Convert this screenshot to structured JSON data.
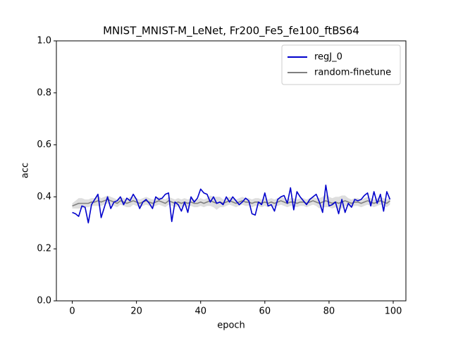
{
  "chart_data": {
    "type": "line",
    "title": "MNIST_MNIST-M_LeNet, Fr200_Fe5_fe100_ftBS64",
    "xlabel": "epoch",
    "ylabel": "acc",
    "x": [
      0,
      1,
      2,
      3,
      4,
      5,
      6,
      7,
      8,
      9,
      10,
      11,
      12,
      13,
      14,
      15,
      16,
      17,
      18,
      19,
      20,
      21,
      22,
      23,
      24,
      25,
      26,
      27,
      28,
      29,
      30,
      31,
      32,
      33,
      34,
      35,
      36,
      37,
      38,
      39,
      40,
      41,
      42,
      43,
      44,
      45,
      46,
      47,
      48,
      49,
      50,
      51,
      52,
      53,
      54,
      55,
      56,
      57,
      58,
      59,
      60,
      61,
      62,
      63,
      64,
      65,
      66,
      67,
      68,
      69,
      70,
      71,
      72,
      73,
      74,
      75,
      76,
      77,
      78,
      79,
      80,
      81,
      82,
      83,
      84,
      85,
      86,
      87,
      88,
      89,
      90,
      91,
      92,
      93,
      94,
      95,
      96,
      97,
      98,
      99
    ],
    "series": [
      {
        "name": "regJ_0",
        "color": "#0000cc",
        "values": [
          0.34,
          0.335,
          0.325,
          0.365,
          0.36,
          0.3,
          0.37,
          0.39,
          0.41,
          0.32,
          0.36,
          0.4,
          0.355,
          0.38,
          0.385,
          0.4,
          0.37,
          0.395,
          0.385,
          0.41,
          0.39,
          0.355,
          0.38,
          0.39,
          0.375,
          0.355,
          0.4,
          0.39,
          0.395,
          0.41,
          0.415,
          0.305,
          0.38,
          0.37,
          0.345,
          0.38,
          0.34,
          0.4,
          0.38,
          0.395,
          0.43,
          0.415,
          0.41,
          0.38,
          0.4,
          0.375,
          0.38,
          0.37,
          0.4,
          0.38,
          0.4,
          0.385,
          0.37,
          0.38,
          0.395,
          0.385,
          0.335,
          0.33,
          0.38,
          0.37,
          0.415,
          0.365,
          0.37,
          0.345,
          0.39,
          0.4,
          0.405,
          0.375,
          0.435,
          0.35,
          0.42,
          0.4,
          0.385,
          0.37,
          0.39,
          0.4,
          0.41,
          0.38,
          0.34,
          0.445,
          0.365,
          0.37,
          0.38,
          0.335,
          0.39,
          0.34,
          0.375,
          0.36,
          0.39,
          0.385,
          0.39,
          0.405,
          0.415,
          0.365,
          0.42,
          0.375,
          0.41,
          0.345,
          0.42,
          0.39
        ]
      },
      {
        "name": "random-finetune",
        "color": "#808080",
        "band_color": "#c8c8c8",
        "values": [
          0.365,
          0.37,
          0.375,
          0.375,
          0.375,
          0.375,
          0.38,
          0.38,
          0.385,
          0.38,
          0.385,
          0.39,
          0.385,
          0.38,
          0.375,
          0.385,
          0.38,
          0.375,
          0.38,
          0.385,
          0.38,
          0.375,
          0.38,
          0.385,
          0.38,
          0.375,
          0.38,
          0.385,
          0.38,
          0.375,
          0.385,
          0.38,
          0.375,
          0.38,
          0.375,
          0.38,
          0.375,
          0.38,
          0.375,
          0.375,
          0.38,
          0.375,
          0.38,
          0.385,
          0.38,
          0.375,
          0.38,
          0.375,
          0.38,
          0.385,
          0.38,
          0.375,
          0.38,
          0.385,
          0.38,
          0.38,
          0.375,
          0.38,
          0.38,
          0.375,
          0.38,
          0.375,
          0.38,
          0.375,
          0.38,
          0.385,
          0.38,
          0.375,
          0.38,
          0.38,
          0.375,
          0.38,
          0.38,
          0.375,
          0.38,
          0.385,
          0.38,
          0.375,
          0.38,
          0.385,
          0.38,
          0.375,
          0.38,
          0.375,
          0.38,
          0.385,
          0.38,
          0.375,
          0.38,
          0.38,
          0.375,
          0.38,
          0.385,
          0.38,
          0.375,
          0.38,
          0.385,
          0.38,
          0.375,
          0.385
        ],
        "error": [
          0.01,
          0.015,
          0.02,
          0.02,
          0.015,
          0.015,
          0.015,
          0.015,
          0.02,
          0.015,
          0.015,
          0.015,
          0.015,
          0.015,
          0.015,
          0.015,
          0.015,
          0.015,
          0.02,
          0.015,
          0.015,
          0.015,
          0.015,
          0.015,
          0.015,
          0.015,
          0.015,
          0.015,
          0.015,
          0.015,
          0.015,
          0.015,
          0.015,
          0.015,
          0.015,
          0.015,
          0.015,
          0.015,
          0.015,
          0.015,
          0.015,
          0.015,
          0.015,
          0.02,
          0.02,
          0.025,
          0.02,
          0.015,
          0.015,
          0.015,
          0.015,
          0.015,
          0.015,
          0.015,
          0.015,
          0.015,
          0.015,
          0.015,
          0.015,
          0.015,
          0.015,
          0.015,
          0.015,
          0.015,
          0.015,
          0.015,
          0.015,
          0.015,
          0.015,
          0.015,
          0.015,
          0.015,
          0.015,
          0.015,
          0.015,
          0.015,
          0.015,
          0.02,
          0.02,
          0.025,
          0.02,
          0.02,
          0.02,
          0.025,
          0.025,
          0.02,
          0.015,
          0.015,
          0.015,
          0.015,
          0.015,
          0.015,
          0.015,
          0.015,
          0.015,
          0.015,
          0.015,
          0.015,
          0.015,
          0.015
        ]
      }
    ],
    "xlim": [
      -4.95,
      103.95
    ],
    "ylim": [
      0,
      1
    ],
    "xticks": [
      0,
      20,
      40,
      60,
      80,
      100
    ],
    "yticks": [
      {
        "value": 0,
        "label": "0.0"
      },
      {
        "value": 0.2,
        "label": "0.2"
      },
      {
        "value": 0.4,
        "label": "0.4"
      },
      {
        "value": 0.6,
        "label": "0.6"
      },
      {
        "value": 0.8,
        "label": "0.8"
      },
      {
        "value": 1,
        "label": "1.0"
      }
    ],
    "legend": "upper right",
    "grid": false
  }
}
